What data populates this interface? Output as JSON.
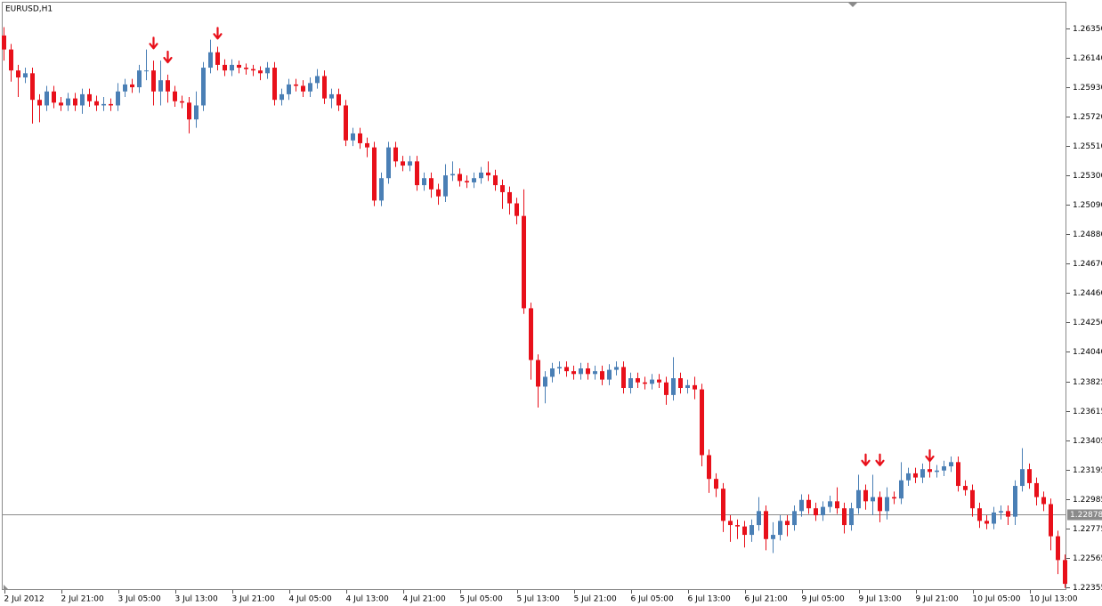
{
  "chart_data": {
    "type": "candlestick",
    "title": "EURUSD,H1",
    "categories": [
      "2 Jul 2012",
      null,
      null,
      null,
      null,
      null,
      null,
      null,
      "2 Jul 21:00",
      null,
      null,
      null,
      null,
      null,
      null,
      null,
      "3 Jul 05:00",
      null,
      null,
      null,
      null,
      null,
      null,
      null,
      "3 Jul 13:00",
      null,
      null,
      null,
      null,
      null,
      null,
      null,
      "3 Jul 21:00",
      null,
      null,
      null,
      null,
      null,
      null,
      null,
      "4 Jul 05:00",
      null,
      null,
      null,
      null,
      null,
      null,
      null,
      "4 Jul 13:00",
      null,
      null,
      null,
      null,
      null,
      null,
      null,
      "4 Jul 21:00",
      null,
      null,
      null,
      null,
      null,
      null,
      null,
      "5 Jul 05:00",
      null,
      null,
      null,
      null,
      null,
      null,
      null,
      "5 Jul 13:00",
      null,
      null,
      null,
      null,
      null,
      null,
      null,
      "5 Jul 21:00",
      null,
      null,
      null,
      null,
      null,
      null,
      null,
      "6 Jul 05:00",
      null,
      null,
      null,
      null,
      null,
      null,
      null,
      "6 Jul 13:00",
      null,
      null,
      null,
      null,
      null,
      null,
      null,
      "6 Jul 21:00",
      null,
      null,
      null,
      null,
      null,
      null,
      null,
      "9 Jul 05:00",
      null,
      null,
      null,
      null,
      null,
      null,
      null,
      "9 Jul 13:00",
      null,
      null,
      null,
      null,
      null,
      null,
      null,
      "9 Jul 21:00",
      null,
      null,
      null,
      null,
      null,
      null,
      null,
      "10 Jul 05:00",
      null,
      null,
      null,
      null,
      null,
      null,
      null,
      "10 Jul 13:00",
      null,
      null,
      null,
      null,
      null
    ],
    "open": [
      1.263,
      1.262,
      1.2605,
      1.26,
      1.2603,
      1.2584,
      1.258,
      1.259,
      1.2582,
      1.258,
      1.2585,
      1.258,
      1.2588,
      1.2583,
      1.258,
      1.2581,
      1.258,
      1.259,
      1.2595,
      1.2593,
      1.2605,
      1.2605,
      1.259,
      1.2598,
      1.259,
      1.2583,
      1.2582,
      1.257,
      1.258,
      1.2607,
      1.2618,
      1.2609,
      1.2605,
      1.2609,
      1.2607,
      1.2606,
      1.2605,
      1.2603,
      1.2607,
      1.2584,
      1.2588,
      1.2595,
      1.2594,
      1.259,
      1.2596,
      1.2601,
      1.2585,
      1.2588,
      1.258,
      1.2555,
      1.256,
      1.2553,
      1.255,
      1.2512,
      1.2528,
      1.255,
      1.254,
      1.2537,
      1.254,
      1.2523,
      1.2528,
      1.252,
      1.2515,
      1.253,
      1.2531,
      1.2526,
      1.2525,
      1.2528,
      1.2532,
      1.253,
      1.2523,
      1.2518,
      1.251,
      1.2501,
      1.2435,
      1.2398,
      1.2379,
      1.2386,
      1.2392,
      1.2393,
      1.239,
      1.2388,
      1.2392,
      1.2388,
      1.239,
      1.2384,
      1.2391,
      1.2393,
      1.2378,
      1.2385,
      1.2382,
      1.2381,
      1.2384,
      1.2382,
      1.2373,
      1.2385,
      1.2378,
      1.238,
      1.2377,
      1.233,
      1.2313,
      1.2306,
      1.2283,
      1.228,
      1.2279,
      1.2273,
      1.228,
      1.229,
      1.227,
      1.2273,
      1.2283,
      1.228,
      1.229,
      1.2298,
      1.2292,
      1.2287,
      1.2293,
      1.2297,
      1.2292,
      1.228,
      1.2292,
      1.2305,
      1.2297,
      1.23,
      1.229,
      1.23,
      1.2299,
      1.2312,
      1.2317,
      1.2314,
      1.232,
      1.2318,
      1.2319,
      1.2322,
      1.2325,
      1.2308,
      1.2305,
      1.2292,
      1.2283,
      1.2281,
      1.2289,
      1.229,
      1.2286,
      1.2308,
      1.232,
      1.231,
      1.23,
      1.2295,
      1.2272,
      1.2255
    ],
    "high": [
      1.2636,
      1.2624,
      1.2609,
      1.2607,
      1.2607,
      1.2588,
      1.2594,
      1.2594,
      1.2586,
      1.2589,
      1.2589,
      1.2592,
      1.2592,
      1.2587,
      1.2586,
      1.2585,
      1.2596,
      1.2599,
      1.2599,
      1.2609,
      1.262,
      1.2612,
      1.2612,
      1.2602,
      1.2594,
      1.2587,
      1.2586,
      1.259,
      1.2611,
      1.2627,
      1.2622,
      1.2613,
      1.2613,
      1.2612,
      1.261,
      1.2609,
      1.2608,
      1.2611,
      1.2611,
      1.2592,
      1.2599,
      1.2599,
      1.2598,
      1.26,
      1.2606,
      1.2605,
      1.2592,
      1.2592,
      1.2584,
      1.2564,
      1.2564,
      1.2557,
      1.2554,
      1.2532,
      1.2554,
      1.2554,
      1.2544,
      1.2544,
      1.2544,
      1.2532,
      1.2532,
      1.2524,
      1.2538,
      1.254,
      1.2535,
      1.253,
      1.2532,
      1.2536,
      1.254,
      1.2534,
      1.2527,
      1.2522,
      1.2514,
      1.252,
      1.2439,
      1.2402,
      1.239,
      1.2396,
      1.2397,
      1.2397,
      1.2394,
      1.2396,
      1.2396,
      1.2394,
      1.2394,
      1.2395,
      1.2397,
      1.2397,
      1.2389,
      1.2389,
      1.2386,
      1.2388,
      1.2388,
      1.2386,
      1.24,
      1.2389,
      1.2384,
      1.2386,
      1.2381,
      1.2334,
      1.2317,
      1.231,
      1.2287,
      1.2284,
      1.2283,
      1.2284,
      1.23,
      1.2294,
      1.2282,
      1.2287,
      1.2287,
      1.2294,
      1.2302,
      1.2302,
      1.2296,
      1.2297,
      1.2301,
      1.2307,
      1.2296,
      1.2296,
      1.2316,
      1.2309,
      1.2316,
      1.2304,
      1.2307,
      1.2304,
      1.2325,
      1.2321,
      1.2321,
      1.2324,
      1.2326,
      1.2323,
      1.2326,
      1.2329,
      1.2329,
      1.2312,
      1.2309,
      1.2296,
      1.2287,
      1.2293,
      1.2294,
      1.2294,
      1.2312,
      1.2335,
      1.2324,
      1.2314,
      1.2304,
      1.2299,
      1.2276,
      1.2259
    ],
    "low": [
      1.2612,
      1.2597,
      1.2586,
      1.2596,
      1.2567,
      1.2568,
      1.2576,
      1.2578,
      1.2576,
      1.2576,
      1.2576,
      1.2574,
      1.2579,
      1.2576,
      1.2576,
      1.2576,
      1.2576,
      1.2586,
      1.2589,
      1.2589,
      1.2598,
      1.258,
      1.258,
      1.2582,
      1.2579,
      1.2578,
      1.256,
      1.2564,
      1.2576,
      1.2603,
      1.2605,
      1.2601,
      1.2601,
      1.2603,
      1.2602,
      1.2601,
      1.2598,
      1.2599,
      1.258,
      1.258,
      1.2584,
      1.259,
      1.2586,
      1.2586,
      1.2592,
      1.2581,
      1.2578,
      1.2576,
      1.2551,
      1.2551,
      1.2549,
      1.2543,
      1.2508,
      1.2508,
      1.2524,
      1.2536,
      1.2533,
      1.2533,
      1.2519,
      1.2519,
      1.2514,
      1.2509,
      1.2511,
      1.2526,
      1.2522,
      1.2521,
      1.2521,
      1.2524,
      1.2526,
      1.2519,
      1.2506,
      1.2502,
      1.2495,
      1.2431,
      1.2384,
      1.2364,
      1.2367,
      1.2382,
      1.2388,
      1.2386,
      1.2384,
      1.2384,
      1.2384,
      1.2384,
      1.238,
      1.238,
      1.2387,
      1.2374,
      1.2374,
      1.2378,
      1.2377,
      1.2377,
      1.2378,
      1.2366,
      1.2369,
      1.2374,
      1.2374,
      1.237,
      1.2322,
      1.2303,
      1.23,
      1.2275,
      1.2268,
      1.227,
      1.2264,
      1.2268,
      1.2276,
      1.2262,
      1.226,
      1.2269,
      1.2272,
      1.2276,
      1.2286,
      1.2288,
      1.2283,
      1.2283,
      1.2289,
      1.2288,
      1.2274,
      1.2276,
      1.2288,
      1.2291,
      1.2287,
      1.2282,
      1.2284,
      1.2295,
      1.2295,
      1.2308,
      1.231,
      1.231,
      1.2314,
      1.2314,
      1.2315,
      1.2318,
      1.2304,
      1.2301,
      1.2286,
      1.2278,
      1.2277,
      1.2277,
      1.2284,
      1.228,
      1.228,
      1.2304,
      1.2306,
      1.2294,
      1.229,
      1.2262,
      1.2245,
      1.2235
    ],
    "close": [
      1.262,
      1.2605,
      1.26,
      1.2603,
      1.2584,
      1.258,
      1.259,
      1.2582,
      1.258,
      1.2585,
      1.258,
      1.2588,
      1.2583,
      1.258,
      1.2581,
      1.258,
      1.259,
      1.2595,
      1.2593,
      1.2605,
      1.2605,
      1.259,
      1.2598,
      1.259,
      1.2583,
      1.2582,
      1.257,
      1.258,
      1.2607,
      1.2618,
      1.2609,
      1.2605,
      1.2609,
      1.2607,
      1.2606,
      1.2605,
      1.2603,
      1.2607,
      1.2584,
      1.2588,
      1.2595,
      1.2594,
      1.259,
      1.2596,
      1.2601,
      1.2585,
      1.2588,
      1.258,
      1.2555,
      1.256,
      1.2553,
      1.255,
      1.2512,
      1.2528,
      1.255,
      1.254,
      1.2537,
      1.254,
      1.2523,
      1.2528,
      1.252,
      1.2515,
      1.253,
      1.2531,
      1.2526,
      1.2525,
      1.2528,
      1.2532,
      1.253,
      1.2523,
      1.2518,
      1.251,
      1.2501,
      1.2435,
      1.2398,
      1.2379,
      1.2386,
      1.2392,
      1.2393,
      1.239,
      1.2388,
      1.2392,
      1.2388,
      1.239,
      1.2384,
      1.2391,
      1.2393,
      1.2378,
      1.2385,
      1.2382,
      1.2381,
      1.2384,
      1.2382,
      1.2373,
      1.2385,
      1.2378,
      1.238,
      1.2377,
      1.233,
      1.2313,
      1.2306,
      1.2283,
      1.228,
      1.2279,
      1.2273,
      1.228,
      1.229,
      1.227,
      1.2273,
      1.2283,
      1.228,
      1.229,
      1.2298,
      1.2292,
      1.2287,
      1.2293,
      1.2297,
      1.2292,
      1.228,
      1.2292,
      1.2305,
      1.2297,
      1.23,
      1.229,
      1.23,
      1.2299,
      1.2312,
      1.2317,
      1.2314,
      1.232,
      1.2318,
      1.2319,
      1.2322,
      1.2325,
      1.2308,
      1.2305,
      1.2292,
      1.2283,
      1.2281,
      1.2289,
      1.229,
      1.2286,
      1.2308,
      1.232,
      1.231,
      1.23,
      1.2295,
      1.2272,
      1.2255,
      1.2238
    ],
    "up_color": "#4a7fb5",
    "down_color": "#e8101a",
    "signal_color": "#e8101a",
    "sell_signals": [
      {
        "bar": 21,
        "price": 1.2624
      },
      {
        "bar": 23,
        "price": 1.2614
      },
      {
        "bar": 30,
        "price": 1.2631
      },
      {
        "bar": 121,
        "price": 1.2326
      },
      {
        "bar": 123,
        "price": 1.2326
      },
      {
        "bar": 130,
        "price": 1.2329
      }
    ],
    "current_price": 1.22878,
    "ylim": [
      1.22336,
      1.26541
    ],
    "yticks": [
      {
        "value": 1.2635,
        "label": "1.26350"
      },
      {
        "value": 1.2614,
        "label": "1.26140"
      },
      {
        "value": 1.2593,
        "label": "1.25930"
      },
      {
        "value": 1.2572,
        "label": "1.25720"
      },
      {
        "value": 1.2551,
        "label": "1.25510"
      },
      {
        "value": 1.253,
        "label": "1.25300"
      },
      {
        "value": 1.2509,
        "label": "1.25090"
      },
      {
        "value": 1.2488,
        "label": "1.24880"
      },
      {
        "value": 1.2467,
        "label": "1.24670"
      },
      {
        "value": 1.2446,
        "label": "1.24460"
      },
      {
        "value": 1.2425,
        "label": "1.24250"
      },
      {
        "value": 1.2404,
        "label": "1.24040"
      },
      1.23825,
      1.23615,
      1.23405,
      1.23195,
      1.22985,
      1.22775,
      1.22565,
      1.22355
    ],
    "grid": false
  }
}
